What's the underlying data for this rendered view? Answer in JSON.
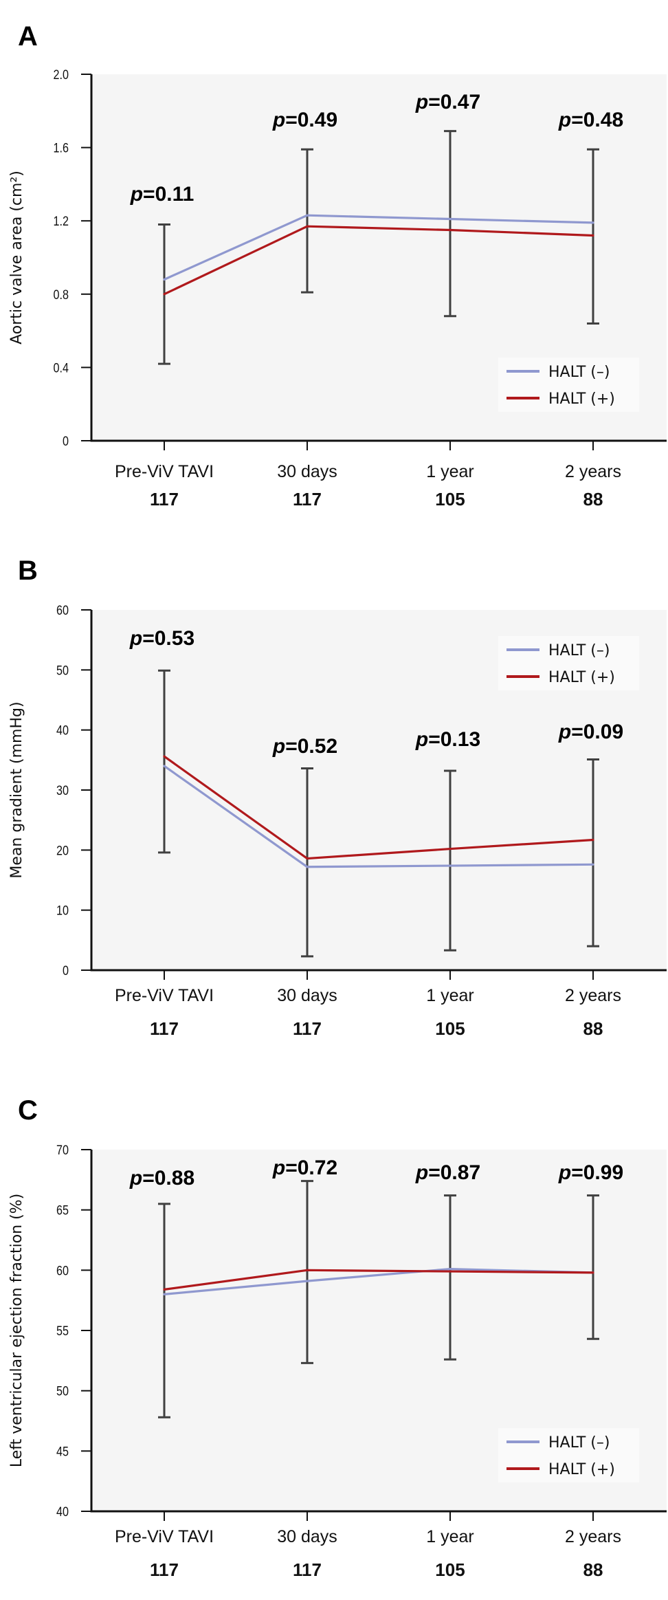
{
  "colors": {
    "halt_neg": "#8f98cf",
    "halt_pos": "#b0191c",
    "error_bar": "#404040",
    "plot_bg": "#f5f5f5",
    "legend_bg": "#fafafa"
  },
  "chart_data": [
    {
      "panel": "A",
      "type": "line",
      "ylabel": "Aortic valve area (cm²)",
      "xlabel": "",
      "categories": [
        "Pre-ViV TAVI",
        "30 days",
        "1 year",
        "2 years"
      ],
      "n_at_risk": [
        "117",
        "117",
        "105",
        "88"
      ],
      "ylim": [
        0,
        2.0
      ],
      "yticks": [
        0,
        0.4,
        0.8,
        1.2,
        1.6,
        2.0
      ],
      "ytick_labels": [
        "0",
        "0.4",
        "0.8",
        "1.2",
        "1.6",
        "2.0"
      ],
      "series": [
        {
          "name": "HALT (–)",
          "color_key": "halt_neg",
          "values": [
            0.88,
            1.23,
            1.21,
            1.19
          ]
        },
        {
          "name": "HALT (+)",
          "color_key": "halt_pos",
          "values": [
            0.8,
            1.17,
            1.15,
            1.12
          ]
        }
      ],
      "error_bars": [
        {
          "low": 0.42,
          "high": 1.18
        },
        {
          "low": 0.81,
          "high": 1.59
        },
        {
          "low": 0.68,
          "high": 1.69
        },
        {
          "low": 0.64,
          "high": 1.59
        }
      ],
      "p_values": [
        "0.11",
        "0.49",
        "0.47",
        "0.48"
      ],
      "p_prefix": "p",
      "legend": {
        "entries": [
          "HALT (–)",
          "HALT (+)"
        ],
        "placement": "bottom-right"
      },
      "grid": false
    },
    {
      "panel": "B",
      "type": "line",
      "ylabel": "Mean gradient (mmHg)",
      "xlabel": "",
      "categories": [
        "Pre-ViV TAVI",
        "30 days",
        "1 year",
        "2 years"
      ],
      "n_at_risk": [
        "117",
        "117",
        "105",
        "88"
      ],
      "ylim": [
        0,
        60
      ],
      "yticks": [
        0,
        10,
        20,
        30,
        40,
        50,
        60
      ],
      "ytick_labels": [
        "0",
        "10",
        "20",
        "30",
        "40",
        "50",
        "60"
      ],
      "series": [
        {
          "name": "HALT (–)",
          "color_key": "halt_neg",
          "values": [
            34.0,
            17.2,
            17.4,
            17.6
          ]
        },
        {
          "name": "HALT (+)",
          "color_key": "halt_pos",
          "values": [
            35.6,
            18.6,
            20.2,
            21.7
          ]
        }
      ],
      "error_bars": [
        {
          "low": 19.6,
          "high": 49.9
        },
        {
          "low": 2.3,
          "high": 33.6
        },
        {
          "low": 3.3,
          "high": 33.2
        },
        {
          "low": 4.0,
          "high": 35.1
        }
      ],
      "p_values": [
        "0.53",
        "0.52",
        "0.13",
        "0.09"
      ],
      "p_prefix": "p",
      "legend": {
        "entries": [
          "HALT (–)",
          "HALT (+)"
        ],
        "placement": "top-right"
      },
      "grid": false
    },
    {
      "panel": "C",
      "type": "line",
      "ylabel": "Left ventricular ejection fraction (%)",
      "xlabel": "",
      "categories": [
        "Pre-ViV TAVI",
        "30 days",
        "1 year",
        "2 years"
      ],
      "n_at_risk": [
        "117",
        "117",
        "105",
        "88"
      ],
      "ylim": [
        40,
        70
      ],
      "yticks": [
        40,
        45,
        50,
        55,
        60,
        65,
        70
      ],
      "ytick_labels": [
        "40",
        "45",
        "50",
        "55",
        "60",
        "65",
        "70"
      ],
      "series": [
        {
          "name": "HALT (–)",
          "color_key": "halt_neg",
          "values": [
            58.0,
            59.1,
            60.1,
            59.8
          ]
        },
        {
          "name": "HALT (+)",
          "color_key": "halt_pos",
          "values": [
            58.4,
            60.0,
            59.9,
            59.8
          ]
        }
      ],
      "error_bars": [
        {
          "low": 47.8,
          "high": 65.5
        },
        {
          "low": 52.3,
          "high": 67.4
        },
        {
          "low": 52.6,
          "high": 66.2
        },
        {
          "low": 54.3,
          "high": 66.2
        }
      ],
      "p_values": [
        "0.88",
        "0.72",
        "0.87",
        "0.99"
      ],
      "p_prefix": "p",
      "legend": {
        "entries": [
          "HALT (–)",
          "HALT (+)"
        ],
        "placement": "bottom-right"
      },
      "grid": false
    }
  ]
}
